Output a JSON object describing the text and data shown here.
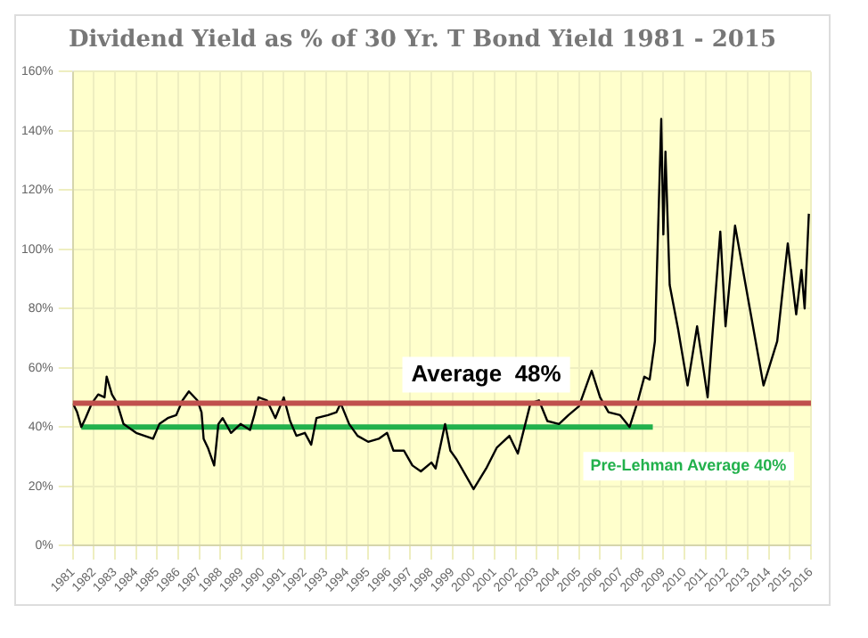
{
  "chart_data": {
    "type": "line",
    "title": "Dividend Yield as % of 30 Yr. T Bond Yield 1981 - 2015",
    "series": [
      {
        "color": "#000000",
        "x": [
          1981.0,
          1981.2,
          1981.4,
          1981.6,
          1981.9,
          1982.2,
          1982.5,
          1982.6,
          1982.85,
          1983.1,
          1983.4,
          1984.0,
          1984.4,
          1984.8,
          1985.1,
          1985.5,
          1985.9,
          1986.2,
          1986.5,
          1986.9,
          1987.1,
          1987.2,
          1987.4,
          1987.7,
          1987.9,
          1988.1,
          1988.5,
          1988.95,
          1989.4,
          1989.6,
          1989.8,
          1990.2,
          1990.6,
          1991.0,
          1991.3,
          1991.6,
          1992.0,
          1992.3,
          1992.55,
          1993.1,
          1993.5,
          1993.7,
          1994.1,
          1994.5,
          1995.0,
          1995.5,
          1995.9,
          1996.2,
          1996.7,
          1997.1,
          1997.5,
          1998.0,
          1998.2,
          1998.65,
          1998.9,
          1999.2,
          2000.0,
          2000.6,
          2001.1,
          2001.7,
          2002.1,
          2002.7,
          2003.1,
          2003.5,
          2004.05,
          2004.5,
          2005.0,
          2005.6,
          2006.0,
          2006.4,
          2006.95,
          2007.4,
          2007.8,
          2008.1,
          2008.35,
          2008.6,
          2008.9,
          2009.0,
          2009.1,
          2009.3,
          2009.7,
          2010.15,
          2010.6,
          2011.1,
          2011.7,
          2011.95,
          2012.4,
          2013.1,
          2013.75,
          2014.4,
          2014.9,
          2015.3,
          2015.55,
          2015.7,
          2015.9
        ],
        "values": [
          48,
          45,
          40,
          43,
          48,
          51,
          50,
          57,
          51,
          48,
          41,
          38,
          37,
          36,
          41,
          43,
          44,
          49,
          52,
          49,
          45,
          36,
          33,
          27,
          41,
          43,
          38,
          41,
          39,
          44,
          50,
          49,
          43,
          50,
          42,
          37,
          38,
          34,
          43,
          44,
          45,
          48,
          41,
          37,
          35,
          36,
          38,
          32,
          32,
          27,
          25,
          28,
          26,
          41,
          32,
          29,
          19,
          26,
          33,
          37,
          31,
          48,
          49,
          42,
          41,
          44,
          47,
          59,
          50,
          45,
          44,
          40,
          49,
          57,
          56,
          69,
          144,
          105,
          133,
          88,
          73,
          54,
          74,
          50,
          106,
          74,
          108,
          80,
          54,
          69,
          102,
          78,
          93,
          80,
          112
        ]
      },
      {
        "name": "Pre-Lehman Average 40%",
        "color": "#22b14c",
        "x": [
          1981.4,
          2008.5
        ],
        "values": [
          40,
          40
        ]
      }
    ],
    "ref_lines": [
      {
        "axis": "y",
        "value": 48,
        "label": "Average  48%",
        "color": "#c0504d"
      }
    ],
    "xlim": [
      1981,
      2016
    ],
    "xticks": [
      1981,
      1982,
      1983,
      1984,
      1985,
      1986,
      1987,
      1988,
      1989,
      1990,
      1991,
      1992,
      1993,
      1994,
      1995,
      1996,
      1997,
      1998,
      1999,
      2000,
      2001,
      2002,
      2003,
      2004,
      2005,
      2006,
      2007,
      2008,
      2009,
      2010,
      2011,
      2012,
      2013,
      2014,
      2015,
      2016
    ],
    "ylim": [
      0,
      160
    ],
    "yticks": [
      {
        "value": 0,
        "label": "0%"
      },
      {
        "value": 20,
        "label": "20%"
      },
      {
        "value": 40,
        "label": "40%"
      },
      {
        "value": 60,
        "label": "60%"
      },
      {
        "value": 80,
        "label": "80%"
      },
      {
        "value": 100,
        "label": "100%"
      },
      {
        "value": 120,
        "label": "120%"
      },
      {
        "value": 140,
        "label": "140%"
      },
      {
        "value": 160,
        "label": "160%"
      }
    ],
    "grid": true,
    "legend": false,
    "marker": "none",
    "line_style": "solid"
  }
}
